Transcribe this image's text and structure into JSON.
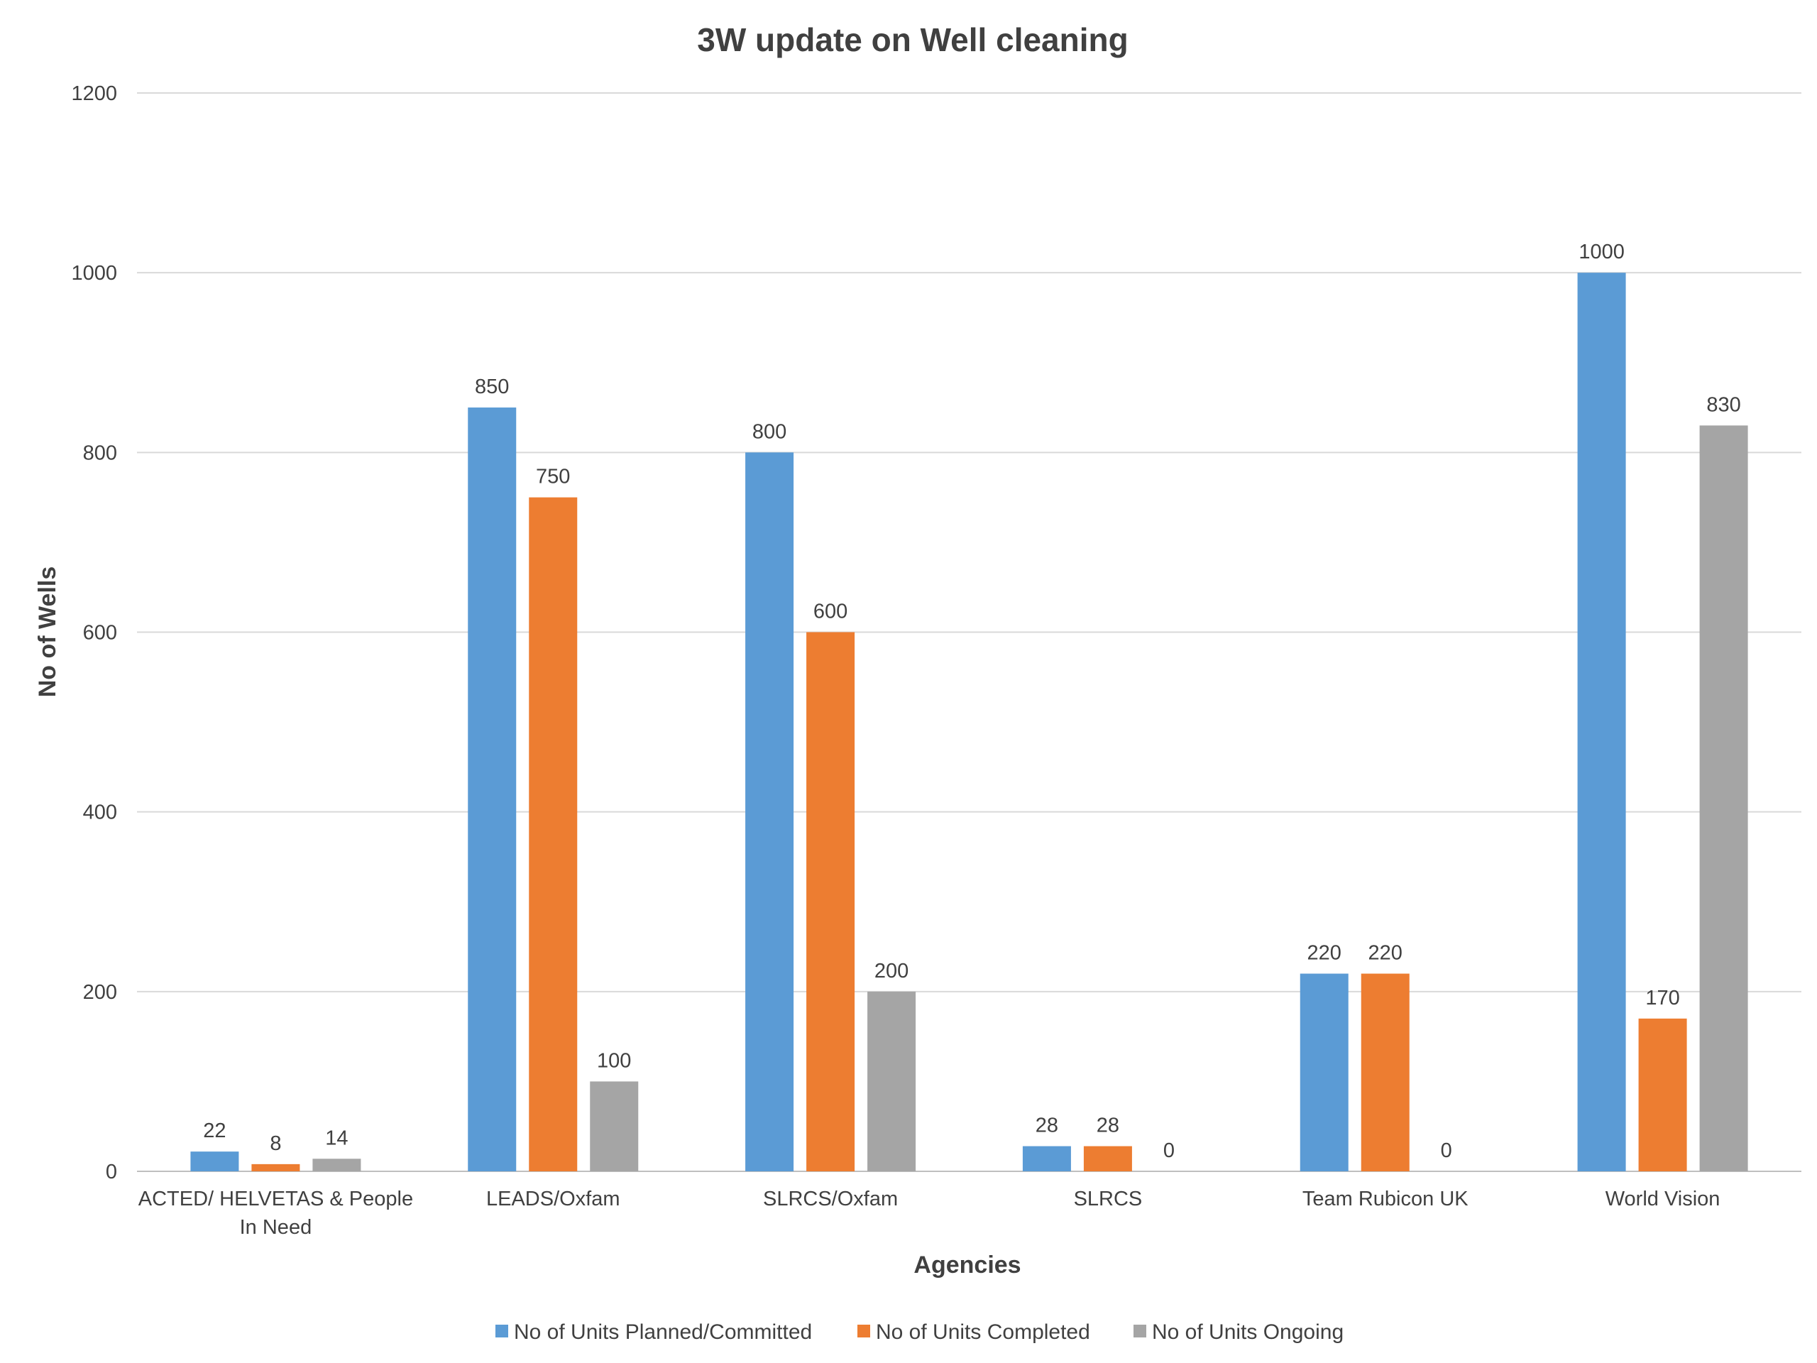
{
  "chart_data": {
    "type": "bar",
    "title": "3W update on Well cleaning",
    "xlabel": "Agencies",
    "ylabel": "No of Wells",
    "ylim": [
      0,
      1200
    ],
    "yticks": [
      0,
      200,
      400,
      600,
      800,
      1000,
      1200
    ],
    "grid": true,
    "legend_position": "bottom",
    "categories": [
      [
        "ACTED/ HELVETAS & People",
        "In Need"
      ],
      [
        "LEADS/Oxfam"
      ],
      [
        "SLRCS/Oxfam"
      ],
      [
        "SLRCS"
      ],
      [
        "Team Rubicon UK"
      ],
      [
        "World Vision"
      ]
    ],
    "series": [
      {
        "name": "No of Units Planned/Committed",
        "color": "#5b9bd5",
        "values": [
          22,
          850,
          800,
          28,
          220,
          1000
        ]
      },
      {
        "name": "No of Units Completed",
        "color": "#ed7d31",
        "values": [
          8,
          750,
          600,
          28,
          220,
          170
        ]
      },
      {
        "name": "No of Units Ongoing",
        "color": "#a5a5a5",
        "values": [
          14,
          100,
          200,
          0,
          0,
          830
        ]
      }
    ]
  }
}
